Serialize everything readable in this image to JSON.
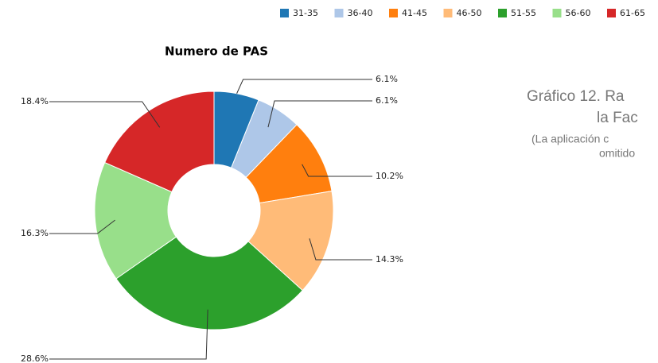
{
  "chart_data": {
    "type": "donut",
    "title": "Numero de PAS",
    "categories": [
      "31-35",
      "36-40",
      "41-45",
      "46-50",
      "51-55",
      "56-60",
      "61-65"
    ],
    "values": [
      6.1,
      6.1,
      10.2,
      14.3,
      28.6,
      16.3,
      18.4
    ],
    "value_labels": [
      "6.1%",
      "6.1%",
      "10.2%",
      "14.3%",
      "28.6%",
      "16.3%",
      "18.4%"
    ],
    "colors": [
      "#1f77b4",
      "#aec7e8",
      "#ff7f0e",
      "#ffbb78",
      "#2ca02c",
      "#98df8a",
      "#d62728"
    ],
    "legend": "top-right",
    "annotations": [
      "Gráfico 12. Ra",
      "la Fac",
      "(La aplicación c",
      "omitido"
    ]
  }
}
